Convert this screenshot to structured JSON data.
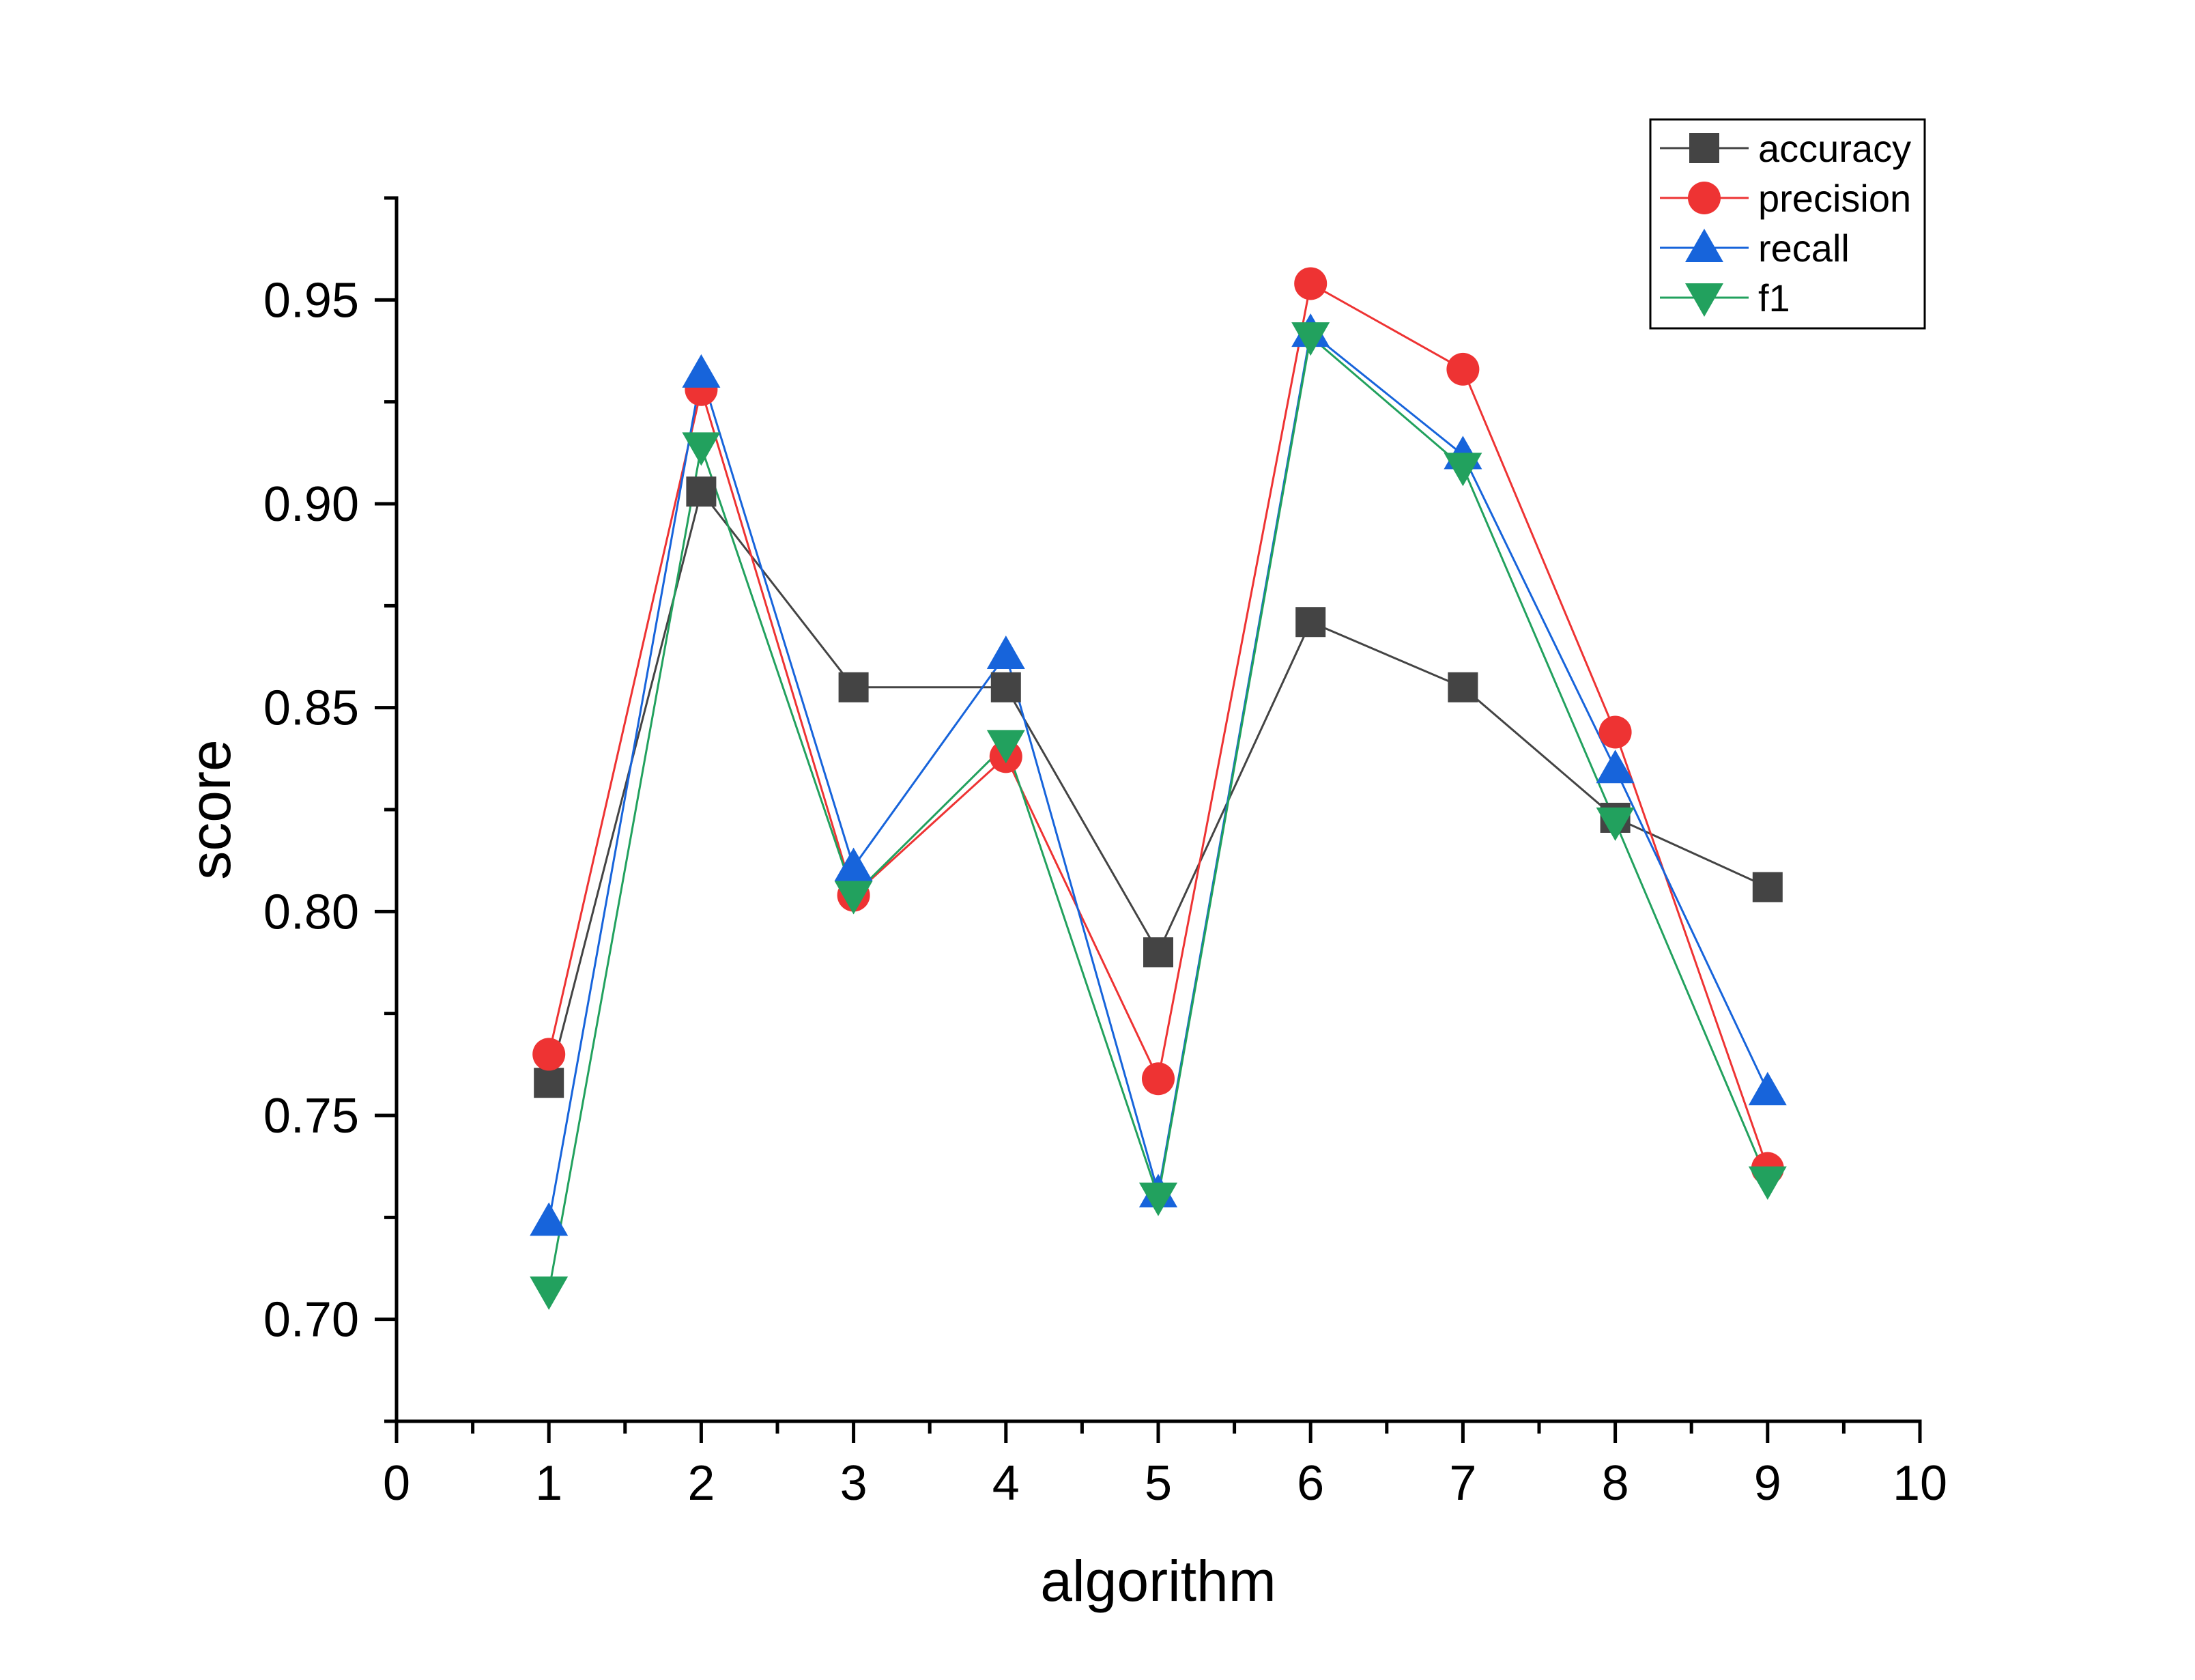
{
  "chart_data": {
    "type": "line",
    "xlabel": "algorithm",
    "ylabel": "score",
    "xlim": [
      0,
      10
    ],
    "ylim": [
      0.675,
      0.975
    ],
    "x_ticks": [
      "0",
      "1",
      "2",
      "3",
      "4",
      "5",
      "6",
      "7",
      "8",
      "9",
      "10"
    ],
    "y_ticks": [
      "0.70",
      "0.75",
      "0.80",
      "0.85",
      "0.90",
      "0.95"
    ],
    "grid": false,
    "legend_position": "top-right",
    "x": [
      1,
      2,
      3,
      4,
      5,
      6,
      7,
      8,
      9
    ],
    "series": [
      {
        "name": "accuracy",
        "color": "#444444",
        "marker": "square",
        "values": [
          0.758,
          0.903,
          0.855,
          0.855,
          0.79,
          0.871,
          0.855,
          0.823,
          0.806
        ]
      },
      {
        "name": "precision",
        "color": "#EE3333",
        "marker": "circle",
        "values": [
          0.765,
          0.928,
          0.804,
          0.838,
          0.759,
          0.954,
          0.933,
          0.844,
          0.737
        ]
      },
      {
        "name": "recall",
        "color": "#1764DB",
        "marker": "triangle-up",
        "values": [
          0.724,
          0.932,
          0.811,
          0.863,
          0.731,
          0.942,
          0.912,
          0.835,
          0.756
        ]
      },
      {
        "name": "f1",
        "color": "#22A15E",
        "marker": "triangle-down",
        "values": [
          0.707,
          0.914,
          0.804,
          0.841,
          0.73,
          0.941,
          0.909,
          0.822,
          0.734
        ]
      }
    ]
  }
}
